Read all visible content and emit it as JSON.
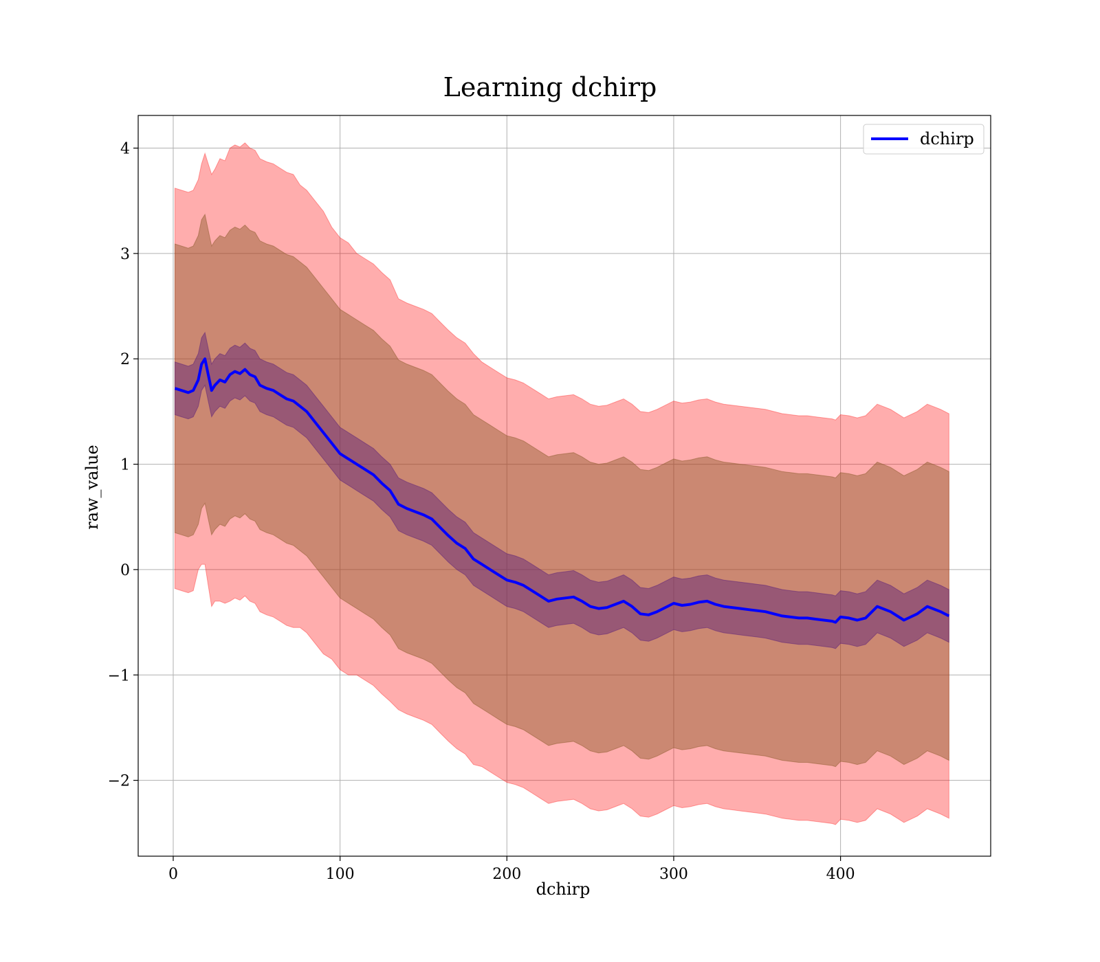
{
  "chart_data": {
    "type": "line",
    "title": "Learning dchirp",
    "xlabel": "dchirp",
    "ylabel": "raw_value",
    "xlim": [
      -21,
      490
    ],
    "ylim": [
      -2.72,
      4.31
    ],
    "xticks": [
      0,
      100,
      200,
      300,
      400
    ],
    "yticks": [
      -2,
      -1,
      0,
      1,
      2,
      3,
      4
    ],
    "xtick_labels": [
      "0",
      "100",
      "200",
      "300",
      "400"
    ],
    "ytick_labels": [
      "−2",
      "−1",
      "0",
      "1",
      "2",
      "3",
      "4"
    ],
    "grid": true,
    "legend": {
      "position": "top-right",
      "entries": [
        "dchirp"
      ]
    },
    "colors": {
      "line": "#0000ff",
      "outer_band": "#ff0000",
      "middle_band": "#8b5a2b",
      "inner_band": "#5a1e7a",
      "grid": "#b0b0b0"
    },
    "series": [
      {
        "name": "dchirp",
        "x": [
          1,
          5,
          9,
          12,
          15,
          17,
          19,
          21,
          23,
          25,
          28,
          31,
          34,
          37,
          40,
          43,
          46,
          49,
          52,
          56,
          60,
          64,
          68,
          72,
          76,
          80,
          85,
          90,
          95,
          100,
          105,
          110,
          115,
          120,
          125,
          130,
          135,
          140,
          145,
          150,
          155,
          160,
          165,
          170,
          175,
          180,
          185,
          190,
          195,
          200,
          205,
          210,
          215,
          220,
          225,
          230,
          235,
          240,
          245,
          250,
          255,
          260,
          265,
          270,
          275,
          280,
          285,
          290,
          295,
          300,
          305,
          310,
          315,
          320,
          325,
          330,
          335,
          340,
          345,
          350,
          355,
          360,
          365,
          370,
          375,
          380,
          385,
          390,
          395,
          397,
          400,
          405,
          410,
          415,
          422,
          430,
          438,
          446,
          452,
          460,
          465
        ],
        "y": [
          1.72,
          1.7,
          1.68,
          1.7,
          1.8,
          1.95,
          2.0,
          1.85,
          1.7,
          1.75,
          1.8,
          1.78,
          1.85,
          1.88,
          1.86,
          1.9,
          1.85,
          1.83,
          1.75,
          1.72,
          1.7,
          1.66,
          1.62,
          1.6,
          1.55,
          1.5,
          1.4,
          1.3,
          1.2,
          1.1,
          1.05,
          1.0,
          0.95,
          0.9,
          0.82,
          0.75,
          0.62,
          0.58,
          0.55,
          0.52,
          0.48,
          0.4,
          0.32,
          0.25,
          0.2,
          0.1,
          0.05,
          0.0,
          -0.05,
          -0.1,
          -0.12,
          -0.15,
          -0.2,
          -0.25,
          -0.3,
          -0.28,
          -0.27,
          -0.26,
          -0.3,
          -0.35,
          -0.37,
          -0.36,
          -0.33,
          -0.3,
          -0.35,
          -0.42,
          -0.43,
          -0.4,
          -0.36,
          -0.32,
          -0.34,
          -0.33,
          -0.31,
          -0.3,
          -0.33,
          -0.35,
          -0.36,
          -0.37,
          -0.38,
          -0.39,
          -0.4,
          -0.42,
          -0.44,
          -0.45,
          -0.46,
          -0.46,
          -0.47,
          -0.48,
          -0.49,
          -0.5,
          -0.45,
          -0.46,
          -0.48,
          -0.46,
          -0.35,
          -0.4,
          -0.48,
          -0.42,
          -0.35,
          -0.4,
          -0.44
        ]
      }
    ],
    "bands": [
      {
        "name": "outer",
        "lower_offset": [
          1.9,
          1.9,
          1.9,
          1.9,
          1.8,
          1.9,
          1.95,
          2.0,
          2.05,
          2.05,
          2.1,
          2.1,
          2.15,
          2.15,
          2.15,
          2.15,
          2.15,
          2.15,
          2.15,
          2.15,
          2.15,
          2.15,
          2.15,
          2.15,
          2.1,
          2.1,
          2.1,
          2.1,
          2.05,
          2.05,
          2.05,
          2.0,
          2.0,
          2.0,
          2.0,
          2.0,
          1.95,
          1.95,
          1.95,
          1.95,
          1.95,
          1.95,
          1.95,
          1.95,
          1.95,
          1.95,
          1.92,
          1.92,
          1.92,
          1.92,
          1.92,
          1.92,
          1.92,
          1.92,
          1.92,
          1.92,
          1.92,
          1.92,
          1.92,
          1.92,
          1.92,
          1.92,
          1.92,
          1.92,
          1.92,
          1.92,
          1.92,
          1.92,
          1.92,
          1.92,
          1.92,
          1.92,
          1.92,
          1.92,
          1.92,
          1.92,
          1.92,
          1.92,
          1.92,
          1.92,
          1.92,
          1.92,
          1.92,
          1.92,
          1.92,
          1.92,
          1.92,
          1.92,
          1.92,
          1.92,
          1.92,
          1.92,
          1.92,
          1.92,
          1.92,
          1.92,
          1.92,
          1.92,
          1.92,
          1.92,
          1.92
        ],
        "upper_offset": [
          1.9,
          1.9,
          1.9,
          1.9,
          1.9,
          1.9,
          1.95,
          2.0,
          2.05,
          2.05,
          2.1,
          2.1,
          2.15,
          2.15,
          2.15,
          2.15,
          2.15,
          2.15,
          2.15,
          2.15,
          2.15,
          2.15,
          2.15,
          2.15,
          2.1,
          2.1,
          2.1,
          2.1,
          2.05,
          2.05,
          2.05,
          2.0,
          2.0,
          2.0,
          2.0,
          2.0,
          1.95,
          1.95,
          1.95,
          1.95,
          1.95,
          1.95,
          1.95,
          1.95,
          1.95,
          1.95,
          1.92,
          1.92,
          1.92,
          1.92,
          1.92,
          1.92,
          1.92,
          1.92,
          1.92,
          1.92,
          1.92,
          1.92,
          1.92,
          1.92,
          1.92,
          1.92,
          1.92,
          1.92,
          1.92,
          1.92,
          1.92,
          1.92,
          1.92,
          1.92,
          1.92,
          1.92,
          1.92,
          1.92,
          1.92,
          1.92,
          1.92,
          1.92,
          1.92,
          1.92,
          1.92,
          1.92,
          1.92,
          1.92,
          1.92,
          1.92,
          1.92,
          1.92,
          1.92,
          1.92,
          1.92,
          1.92,
          1.92,
          1.92,
          1.92,
          1.92,
          1.92,
          1.92,
          1.92,
          1.92,
          1.92
        ]
      },
      {
        "name": "middle",
        "offset": 1.37
      },
      {
        "name": "inner",
        "offset": 0.25
      }
    ]
  }
}
